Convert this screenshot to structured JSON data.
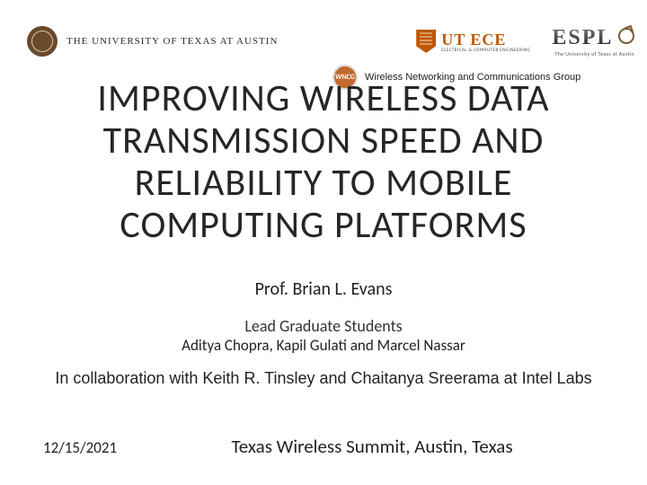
{
  "colors": {
    "burnt_orange": "#bf5700",
    "seal_brown": "#6b4a2a",
    "text_primary": "#262626",
    "text_body": "#222222",
    "background": "#ffffff"
  },
  "header": {
    "ut_text": "THE UNIVERSITY OF TEXAS AT AUSTIN",
    "utece_label": "UT ECE",
    "utece_sub": "ELECTRICAL & COMPUTER ENGINEERING",
    "espl_label": "ESPL",
    "espl_sub": "The University of Texas at Austin"
  },
  "wncg": {
    "badge": "WNCG",
    "text": "Wireless Networking and Communications Group"
  },
  "title": {
    "line1": "IMPROVING WIRELESS DATA",
    "line2": "TRANSMISSION SPEED AND",
    "line3": "RELIABILITY TO MOBILE",
    "line4": "COMPUTING PLATFORMS"
  },
  "presenter": "Prof. Brian L. Evans",
  "students": {
    "label": "Lead Graduate Students",
    "names": "Aditya Chopra, Kapil Gulati and Marcel Nassar"
  },
  "collaboration": "In collaboration with Keith R. Tinsley and Chaitanya Sreerama at Intel Labs",
  "footer": {
    "date": "12/15/2021",
    "venue": "Texas Wireless Summit, Austin, Texas"
  }
}
